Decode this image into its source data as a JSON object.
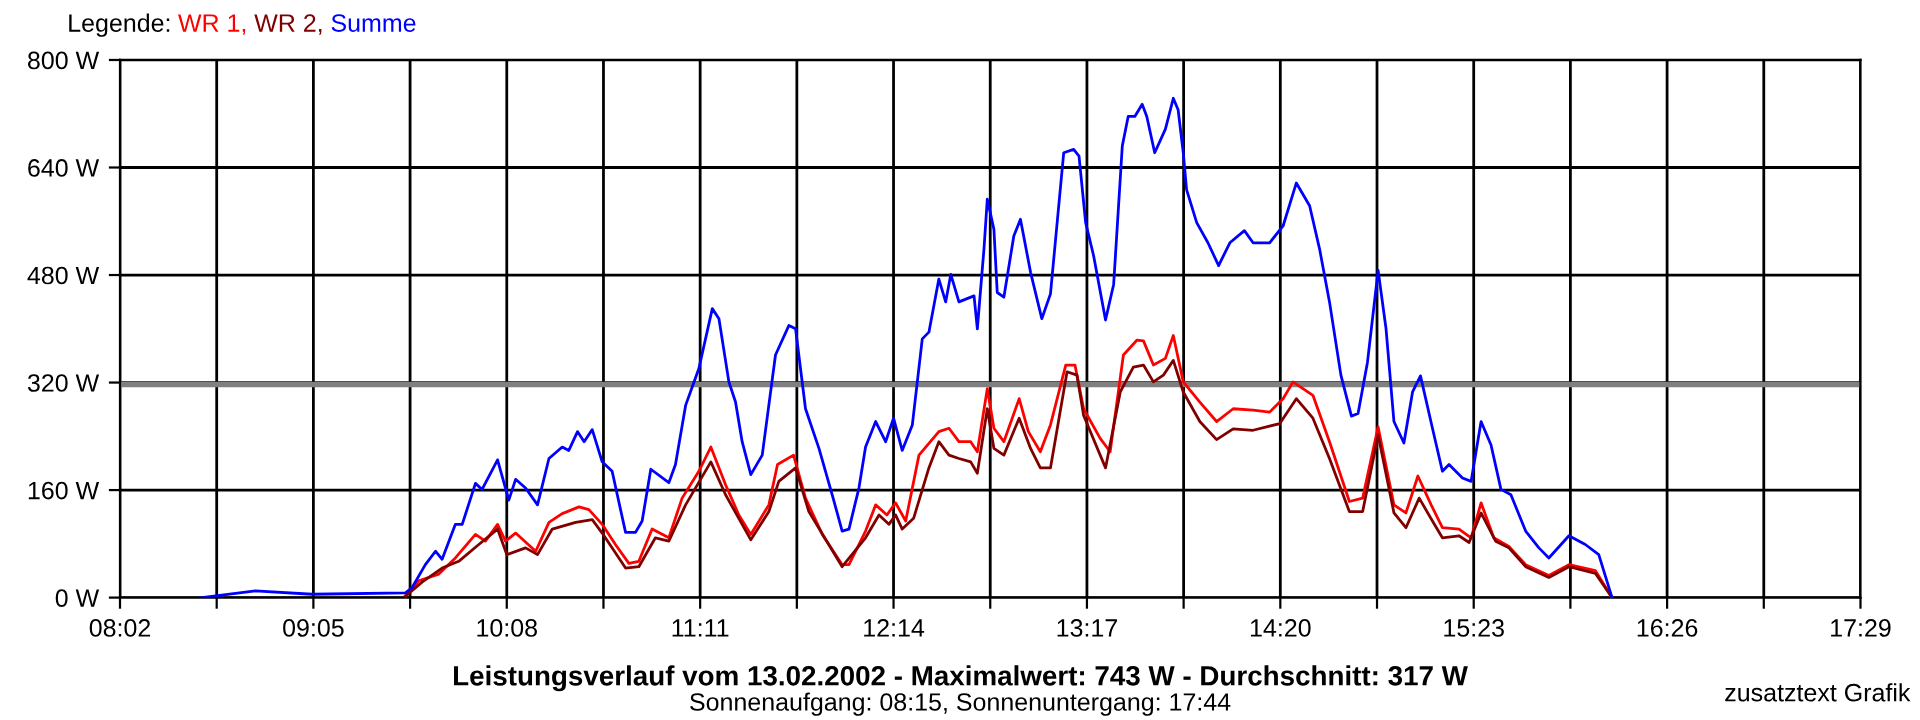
{
  "chart_data": {
    "type": "line",
    "title": "Leistungsverlauf vom 13.02.2002 - Maximalwert: 743 W - Durchschnitt: 317 W",
    "subtitle": "Sonnenaufgang: 08:15, Sonnenuntergang: 17:44",
    "legend_title": "Legende:",
    "annotations": [
      "zusatztext Grafik"
    ],
    "legend": "top left",
    "grid": true,
    "marker": "none",
    "line_style": "solid",
    "xlim": [
      8.033,
      17.483
    ],
    "ylim": [
      0,
      800
    ],
    "xticks": [
      {
        "value": 8.033,
        "label": "08:02"
      },
      {
        "value": 8.558,
        "label": null
      },
      {
        "value": 9.083,
        "label": "09:05"
      },
      {
        "value": 9.608,
        "label": null
      },
      {
        "value": 10.133,
        "label": "10:08"
      },
      {
        "value": 10.658,
        "label": null
      },
      {
        "value": 11.183,
        "label": "11:11"
      },
      {
        "value": 11.708,
        "label": null
      },
      {
        "value": 12.233,
        "label": "12:14"
      },
      {
        "value": 12.758,
        "label": null
      },
      {
        "value": 13.283,
        "label": "13:17"
      },
      {
        "value": 13.808,
        "label": null
      },
      {
        "value": 14.333,
        "label": "14:20"
      },
      {
        "value": 14.858,
        "label": null
      },
      {
        "value": 15.383,
        "label": "15:23"
      },
      {
        "value": 15.908,
        "label": null
      },
      {
        "value": 16.433,
        "label": "16:26"
      },
      {
        "value": 16.958,
        "label": null
      },
      {
        "value": 17.483,
        "label": "17:29"
      }
    ],
    "yticks": [
      {
        "value": 0,
        "label": "0 W"
      },
      {
        "value": 160,
        "label": "160 W"
      },
      {
        "value": 320,
        "label": "320 W"
      },
      {
        "value": 480,
        "label": "480 W"
      },
      {
        "value": 640,
        "label": "640 W"
      },
      {
        "value": 800,
        "label": "800 W"
      }
    ],
    "ref_lines": [
      {
        "axis": "y",
        "value": 317,
        "color": "#808080"
      }
    ],
    "series": [
      {
        "name": "WR 1,",
        "color": "#ff0000",
        "x": [
          9.583,
          9.655,
          9.764,
          9.854,
          9.963,
          10.017,
          10.083,
          10.126,
          10.181,
          10.29,
          10.362,
          10.434,
          10.525,
          10.579,
          10.651,
          10.723,
          10.796,
          10.85,
          10.922,
          11.013,
          11.085,
          11.176,
          11.241,
          11.321,
          11.393,
          11.458,
          11.556,
          11.603,
          11.69,
          11.755,
          11.846,
          11.954,
          11.991,
          12.081,
          12.136,
          12.197,
          12.244,
          12.299,
          12.371,
          12.479,
          12.534,
          12.588,
          12.652,
          12.688,
          12.742,
          12.778,
          12.832,
          12.915,
          12.965,
          13.03,
          13.085,
          13.168,
          13.218,
          13.265,
          13.355,
          13.409,
          13.481,
          13.554,
          13.59,
          13.644,
          13.709,
          13.752,
          13.806,
          13.896,
          13.987,
          14.077,
          14.185,
          14.275,
          14.348,
          14.402,
          14.51,
          14.6,
          14.708,
          14.78,
          14.864,
          14.95,
          15.015,
          15.08,
          15.152,
          15.213,
          15.303,
          15.369,
          15.423,
          15.492,
          15.574,
          15.665,
          15.791,
          15.9,
          16.044,
          16.134
        ],
        "values": [
          3,
          25,
          35,
          59,
          94,
          84,
          109,
          84,
          96,
          69,
          112,
          125,
          135,
          131,
          109,
          79,
          51,
          54,
          102,
          89,
          148,
          188,
          224,
          168,
          123,
          94,
          138,
          198,
          212,
          148,
          94,
          49,
          49,
          99,
          138,
          123,
          141,
          114,
          212,
          247,
          252,
          232,
          232,
          217,
          311,
          252,
          232,
          296,
          247,
          217,
          257,
          346,
          346,
          281,
          237,
          217,
          361,
          383,
          382,
          346,
          356,
          390,
          321,
          291,
          262,
          281,
          279,
          276,
          296,
          321,
          301,
          232,
          143,
          148,
          254,
          138,
          126,
          181,
          138,
          104,
          102,
          89,
          141,
          89,
          76,
          49,
          33,
          49,
          40,
          0
        ]
      },
      {
        "name": "WR 2,",
        "color": "#800000",
        "x": [
          9.583,
          9.673,
          9.782,
          9.872,
          9.981,
          10.083,
          10.133,
          10.235,
          10.3,
          10.38,
          10.507,
          10.597,
          10.651,
          10.778,
          10.85,
          10.94,
          11.013,
          11.104,
          11.241,
          11.321,
          11.458,
          11.556,
          11.61,
          11.701,
          11.773,
          11.954,
          12.081,
          12.154,
          12.208,
          12.244,
          12.28,
          12.342,
          12.425,
          12.479,
          12.534,
          12.588,
          12.652,
          12.688,
          12.742,
          12.778,
          12.832,
          12.915,
          12.977,
          13.03,
          13.085,
          13.175,
          13.229,
          13.265,
          13.384,
          13.464,
          13.535,
          13.59,
          13.644,
          13.698,
          13.752,
          13.806,
          13.896,
          13.987,
          14.077,
          14.185,
          14.33,
          14.42,
          14.51,
          14.6,
          14.708,
          14.78,
          14.864,
          14.95,
          15.015,
          15.087,
          15.159,
          15.213,
          15.303,
          15.358,
          15.423,
          15.502,
          15.574,
          15.665,
          15.791,
          15.9,
          16.044,
          16.134
        ],
        "values": [
          2,
          23,
          44,
          54,
          79,
          102,
          64,
          74,
          64,
          102,
          112,
          116,
          96,
          44,
          46,
          89,
          84,
          138,
          202,
          153,
          86,
          128,
          173,
          193,
          128,
          46,
          89,
          123,
          109,
          123,
          102,
          118,
          193,
          232,
          212,
          207,
          202,
          185,
          281,
          222,
          212,
          267,
          222,
          193,
          193,
          336,
          331,
          271,
          193,
          306,
          343,
          346,
          321,
          331,
          353,
          306,
          262,
          235,
          251,
          249,
          259,
          296,
          267,
          207,
          128,
          128,
          242,
          126,
          104,
          148,
          114,
          89,
          92,
          82,
          126,
          84,
          74,
          46,
          30,
          46,
          36,
          0
        ]
      },
      {
        "name": "Summe",
        "color": "#0000ff",
        "x": [
          8.478,
          8.768,
          9.076,
          9.583,
          9.619,
          9.691,
          9.746,
          9.782,
          9.854,
          9.891,
          9.963,
          9.999,
          10.083,
          10.144,
          10.181,
          10.235,
          10.3,
          10.362,
          10.434,
          10.47,
          10.517,
          10.553,
          10.597,
          10.651,
          10.705,
          10.778,
          10.832,
          10.868,
          10.915,
          11.013,
          11.049,
          11.104,
          11.176,
          11.249,
          11.285,
          11.339,
          11.375,
          11.411,
          11.458,
          11.52,
          11.592,
          11.665,
          11.701,
          11.755,
          11.828,
          11.9,
          11.954,
          11.991,
          12.045,
          12.081,
          12.136,
          12.19,
          12.233,
          12.28,
          12.335,
          12.389,
          12.425,
          12.479,
          12.516,
          12.544,
          12.588,
          12.67,
          12.688,
          12.724,
          12.742,
          12.778,
          12.796,
          12.832,
          12.886,
          12.922,
          12.977,
          13.038,
          13.085,
          13.157,
          13.211,
          13.24,
          13.276,
          13.319,
          13.384,
          13.428,
          13.475,
          13.507,
          13.543,
          13.583,
          13.608,
          13.651,
          13.709,
          13.752,
          13.778,
          13.806,
          13.824,
          13.879,
          13.94,
          13.998,
          14.059,
          14.138,
          14.185,
          14.275,
          14.348,
          14.42,
          14.492,
          14.546,
          14.6,
          14.662,
          14.719,
          14.755,
          14.806,
          14.864,
          14.907,
          14.95,
          15.004,
          15.051,
          15.094,
          15.159,
          15.213,
          15.249,
          15.322,
          15.369,
          15.423,
          15.477,
          15.531,
          15.585,
          15.665,
          15.737,
          15.791,
          15.9,
          15.989,
          16.062,
          16.134
        ],
        "values": [
          0,
          10,
          5,
          7,
          15,
          49,
          69,
          57,
          109,
          109,
          170,
          161,
          205,
          145,
          176,
          163,
          138,
          207,
          224,
          219,
          247,
          232,
          250,
          202,
          188,
          97,
          97,
          114,
          191,
          171,
          198,
          286,
          341,
          430,
          415,
          321,
          291,
          232,
          183,
          212,
          361,
          405,
          400,
          281,
          222,
          153,
          99,
          102,
          163,
          224,
          262,
          232,
          267,
          219,
          257,
          385,
          395,
          474,
          440,
          481,
          440,
          449,
          400,
          519,
          593,
          548,
          454,
          447,
          538,
          563,
          484,
          415,
          452,
          662,
          667,
          657,
          558,
          509,
          413,
          466,
          672,
          716,
          716,
          734,
          716,
          662,
          697,
          743,
          726,
          662,
          607,
          558,
          528,
          494,
          528,
          546,
          528,
          528,
          553,
          617,
          583,
          519,
          440,
          331,
          270,
          274,
          350,
          487,
          400,
          262,
          230,
          306,
          330,
          252,
          188,
          198,
          178,
          173,
          262,
          227,
          161,
          153,
          99,
          74,
          59,
          92,
          79,
          64,
          0
        ]
      }
    ]
  }
}
